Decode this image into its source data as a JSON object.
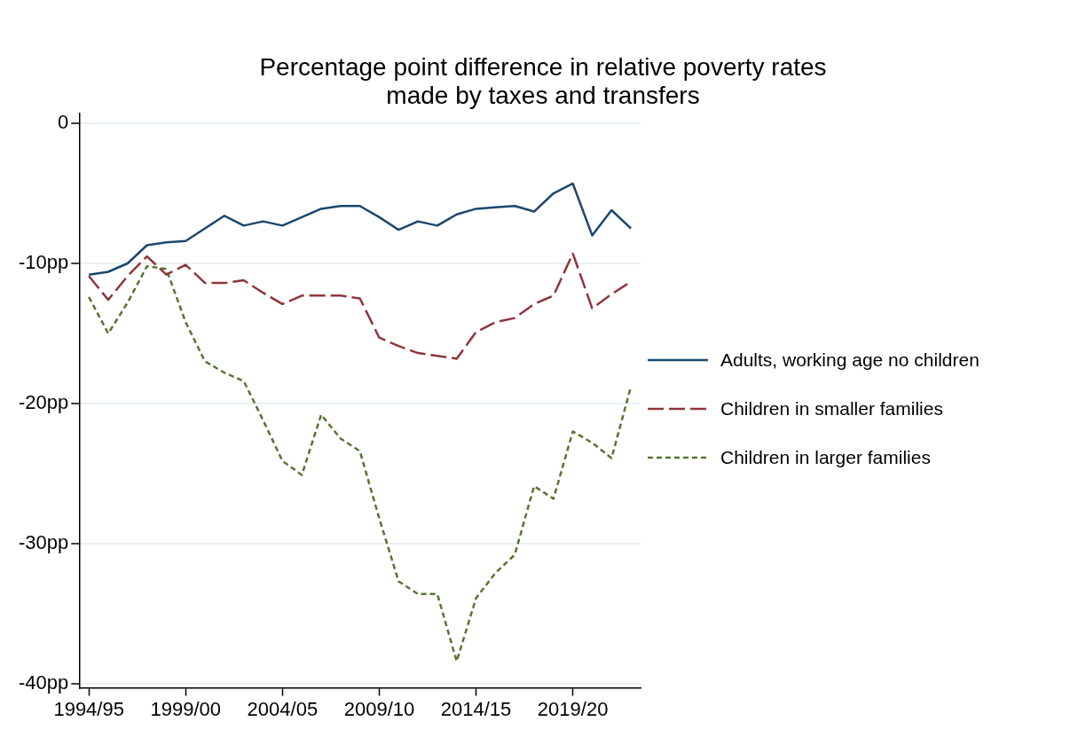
{
  "chart_data": {
    "type": "line",
    "title": "Percentage point difference in relative poverty rates\nmade by taxes and transfers",
    "categories": [
      "1994/95",
      null,
      null,
      null,
      null,
      "1999/00",
      null,
      null,
      null,
      null,
      "2004/05",
      null,
      null,
      null,
      null,
      "2009/10",
      null,
      null,
      null,
      null,
      "2014/15",
      null,
      null,
      null,
      null,
      "2019/20",
      null,
      null,
      null
    ],
    "ylim": [
      -40.3,
      0.7
    ],
    "yticks": [
      0,
      {
        "value": -10,
        "label": "-10pp"
      },
      {
        "value": -20,
        "label": "-20pp"
      },
      {
        "value": -30,
        "label": "-30pp"
      },
      {
        "value": -40,
        "label": "-40pp"
      }
    ],
    "grid": "y",
    "legend": "right",
    "marker": "none",
    "series": [
      {
        "name": "Adults, working age no children",
        "color": "#1a476f",
        "line_style": "solid",
        "values": [
          -10.8,
          -10.6,
          -10.0,
          -8.7,
          -8.5,
          -8.4,
          -7.5,
          -6.6,
          -7.3,
          -7.0,
          -7.3,
          -6.7,
          -6.1,
          -5.9,
          -5.9,
          -6.7,
          -7.6,
          -7.0,
          -7.3,
          -6.5,
          -6.1,
          -6.0,
          -5.9,
          -6.3,
          -5.0,
          -4.3,
          -8.0,
          -6.2,
          -7.5
        ]
      },
      {
        "name": "Children in smaller families",
        "color": "#90353b",
        "line_style": "dashed",
        "values": [
          -10.9,
          -12.6,
          -10.9,
          -9.5,
          -10.8,
          -10.1,
          -11.4,
          -11.4,
          -11.2,
          -12.1,
          -12.9,
          -12.3,
          -12.3,
          -12.3,
          -12.5,
          -15.3,
          -15.9,
          -16.4,
          -16.6,
          -16.8,
          -14.9,
          -14.2,
          -13.9,
          -12.9,
          -12.3,
          -9.3,
          -13.2,
          -12.2,
          -11.3
        ]
      },
      {
        "name": "Children in larger families",
        "color": "#55752f",
        "line_style": "dotted",
        "values": [
          -12.4,
          -15.0,
          -12.8,
          -10.2,
          -10.4,
          -14.2,
          -17.0,
          -17.8,
          -18.4,
          -21.2,
          -24.1,
          -25.1,
          -20.8,
          -22.5,
          -23.4,
          -28.2,
          -32.7,
          -33.6,
          -33.6,
          -38.4,
          -33.9,
          -32.1,
          -30.8,
          -25.9,
          -26.8,
          -22.0,
          -22.8,
          -23.9,
          -18.8
        ]
      }
    ]
  }
}
